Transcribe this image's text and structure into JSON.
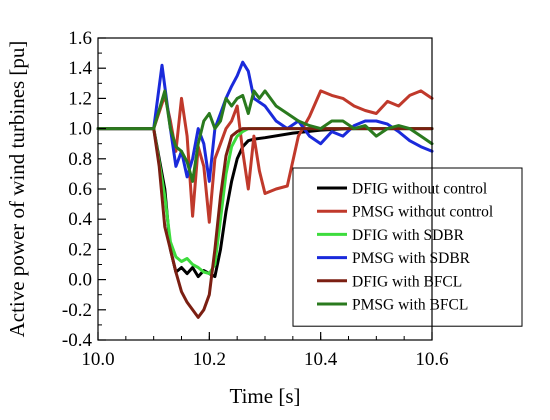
{
  "chart_data": {
    "type": "line",
    "title": "",
    "xlabel": "Time [s]",
    "ylabel": "Active power of wind turbines [pu]",
    "xlim": [
      10.0,
      10.6
    ],
    "ylim": [
      -0.4,
      1.6
    ],
    "xticks": [
      10.0,
      10.2,
      10.4,
      10.6
    ],
    "xtick_labels": [
      "10.0",
      "10.2",
      "10.4",
      "10.6"
    ],
    "yticks": [
      -0.4,
      -0.2,
      0.0,
      0.2,
      0.4,
      0.6,
      0.8,
      1.0,
      1.2,
      1.4,
      1.6
    ],
    "ytick_labels": [
      "-0.4",
      "-0.2",
      "0.0",
      "0.2",
      "0.4",
      "0.6",
      "0.8",
      "1.0",
      "1.2",
      "1.4",
      "1.6"
    ],
    "grid": false,
    "legend_position": "bottom-right",
    "series": [
      {
        "name": "DFIG without control",
        "color": "#000000",
        "x": [
          10.0,
          10.05,
          10.1,
          10.12,
          10.13,
          10.14,
          10.15,
          10.16,
          10.17,
          10.18,
          10.19,
          10.2,
          10.21,
          10.22,
          10.23,
          10.24,
          10.25,
          10.26,
          10.27,
          10.28,
          10.3,
          10.35,
          10.4,
          10.45,
          10.5,
          10.55,
          10.6
        ],
        "y": [
          1.0,
          1.0,
          1.0,
          0.6,
          0.2,
          0.05,
          0.08,
          0.04,
          0.08,
          0.02,
          0.06,
          0.04,
          0.02,
          0.2,
          0.45,
          0.65,
          0.8,
          0.88,
          0.92,
          0.93,
          0.94,
          0.97,
          0.99,
          1.0,
          1.0,
          1.0,
          1.0
        ]
      },
      {
        "name": "PMSG without control",
        "color": "#c0392b",
        "x": [
          10.0,
          10.05,
          10.1,
          10.12,
          10.13,
          10.14,
          10.15,
          10.16,
          10.17,
          10.18,
          10.19,
          10.2,
          10.21,
          10.22,
          10.23,
          10.24,
          10.25,
          10.26,
          10.27,
          10.28,
          10.29,
          10.3,
          10.32,
          10.34,
          10.36,
          10.38,
          10.4,
          10.42,
          10.44,
          10.46,
          10.48,
          10.5,
          10.52,
          10.54,
          10.56,
          10.58,
          10.6
        ],
        "y": [
          1.0,
          1.0,
          1.0,
          1.22,
          1.05,
          0.85,
          1.2,
          0.95,
          0.42,
          0.88,
          0.75,
          0.38,
          0.8,
          0.9,
          1.0,
          1.05,
          1.15,
          0.85,
          0.6,
          0.95,
          0.72,
          0.57,
          0.6,
          0.62,
          0.95,
          1.08,
          1.25,
          1.22,
          1.2,
          1.15,
          1.12,
          1.1,
          1.18,
          1.15,
          1.22,
          1.25,
          1.2
        ]
      },
      {
        "name": "DFIG with SDBR",
        "color": "#3ddc3d",
        "x": [
          10.0,
          10.05,
          10.1,
          10.12,
          10.13,
          10.14,
          10.15,
          10.16,
          10.17,
          10.18,
          10.19,
          10.2,
          10.21,
          10.22,
          10.23,
          10.24,
          10.25,
          10.26,
          10.27,
          10.28,
          10.3,
          10.35,
          10.4,
          10.45,
          10.5,
          10.55,
          10.6
        ],
        "y": [
          1.0,
          1.0,
          1.0,
          0.55,
          0.25,
          0.15,
          0.12,
          0.14,
          0.1,
          0.08,
          0.05,
          0.04,
          0.1,
          0.4,
          0.7,
          0.88,
          0.95,
          0.98,
          1.0,
          1.0,
          1.0,
          1.0,
          1.0,
          1.0,
          1.0,
          1.0,
          1.0
        ]
      },
      {
        "name": "PMSG with SDBR",
        "color": "#1a2adb",
        "x": [
          10.0,
          10.05,
          10.1,
          10.115,
          10.13,
          10.14,
          10.15,
          10.16,
          10.17,
          10.18,
          10.19,
          10.2,
          10.21,
          10.22,
          10.23,
          10.24,
          10.25,
          10.26,
          10.27,
          10.28,
          10.3,
          10.32,
          10.34,
          10.36,
          10.38,
          10.4,
          10.42,
          10.44,
          10.46,
          10.48,
          10.5,
          10.52,
          10.54,
          10.56,
          10.58,
          10.6
        ],
        "y": [
          1.0,
          1.0,
          1.0,
          1.42,
          1.0,
          0.75,
          0.85,
          0.68,
          0.8,
          1.0,
          0.9,
          0.65,
          1.0,
          1.1,
          1.2,
          1.28,
          1.35,
          1.44,
          1.38,
          1.2,
          1.15,
          1.05,
          1.0,
          1.05,
          0.95,
          0.9,
          0.98,
          0.95,
          1.02,
          1.05,
          1.05,
          1.03,
          0.98,
          0.92,
          0.88,
          0.85
        ]
      },
      {
        "name": "DFIG with BFCL",
        "color": "#7b1f12",
        "x": [
          10.0,
          10.05,
          10.1,
          10.11,
          10.12,
          10.13,
          10.14,
          10.15,
          10.16,
          10.17,
          10.18,
          10.19,
          10.2,
          10.21,
          10.22,
          10.23,
          10.24,
          10.25,
          10.26,
          10.28,
          10.3,
          10.35,
          10.4,
          10.45,
          10.5,
          10.55,
          10.6
        ],
        "y": [
          1.0,
          1.0,
          1.0,
          0.75,
          0.35,
          0.2,
          0.05,
          -0.08,
          -0.15,
          -0.2,
          -0.25,
          -0.2,
          -0.1,
          0.2,
          0.55,
          0.82,
          0.95,
          0.98,
          1.0,
          1.0,
          1.0,
          1.0,
          1.0,
          1.0,
          1.0,
          1.0,
          1.0
        ]
      },
      {
        "name": "PMSG with BFCL",
        "color": "#2a7a1e",
        "x": [
          10.0,
          10.05,
          10.1,
          10.12,
          10.13,
          10.14,
          10.15,
          10.16,
          10.17,
          10.18,
          10.19,
          10.2,
          10.21,
          10.22,
          10.23,
          10.24,
          10.25,
          10.26,
          10.27,
          10.28,
          10.29,
          10.3,
          10.32,
          10.34,
          10.36,
          10.38,
          10.4,
          10.42,
          10.44,
          10.46,
          10.48,
          10.5,
          10.52,
          10.54,
          10.56,
          10.58,
          10.6
        ],
        "y": [
          1.0,
          1.0,
          1.0,
          1.25,
          1.0,
          0.88,
          0.85,
          0.78,
          0.65,
          0.9,
          1.05,
          1.1,
          1.0,
          1.05,
          1.2,
          1.15,
          1.2,
          1.22,
          1.1,
          1.25,
          1.2,
          1.25,
          1.15,
          1.1,
          1.05,
          1.02,
          1.0,
          1.05,
          1.05,
          1.0,
          1.02,
          0.95,
          1.0,
          1.02,
          1.0,
          0.95,
          0.9
        ]
      }
    ]
  }
}
